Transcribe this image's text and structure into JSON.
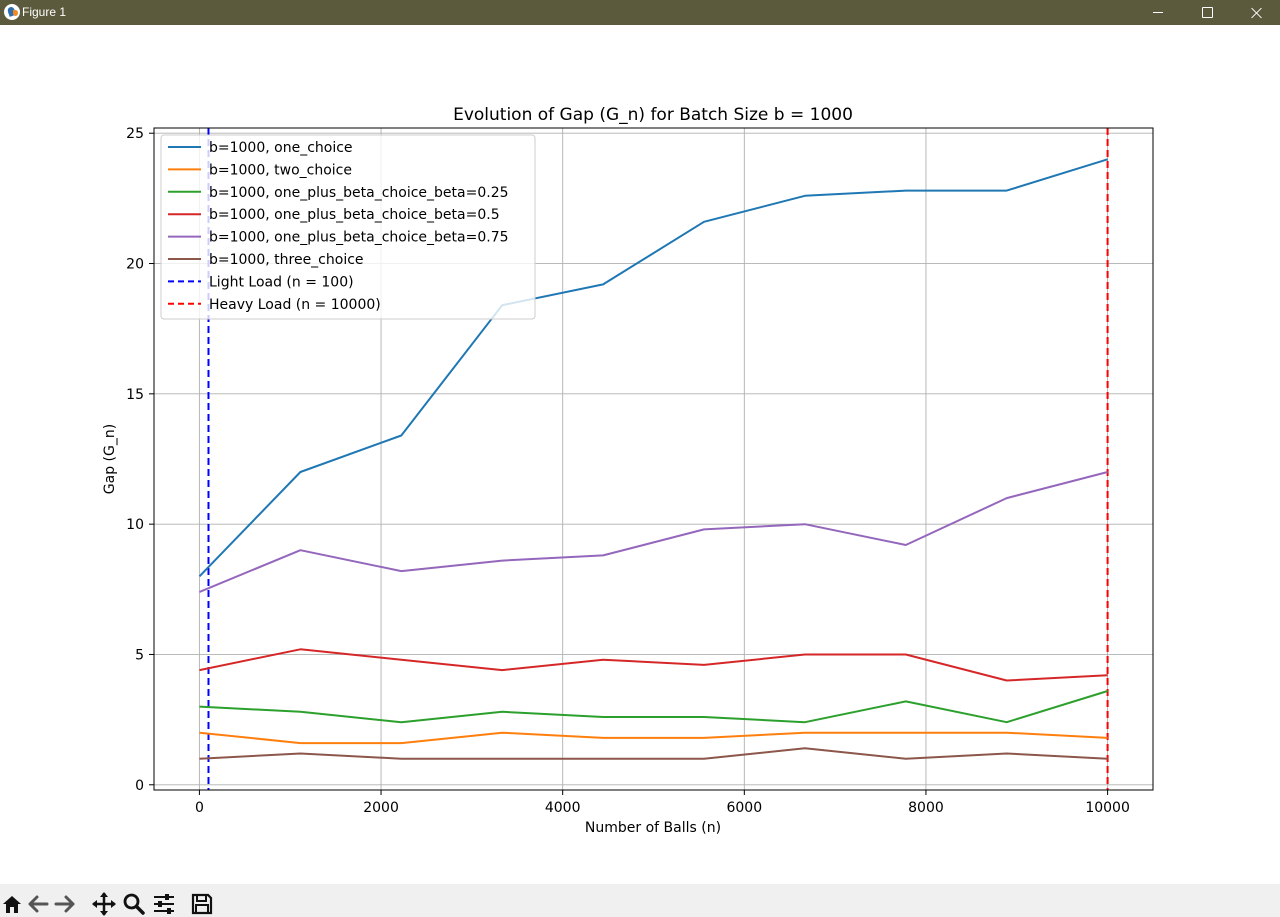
{
  "window": {
    "title": "Figure 1",
    "controls": {
      "minimize": "minimize-icon",
      "maximize": "maximize-icon",
      "close": "close-icon"
    }
  },
  "toolbar": {
    "tools": [
      "home-icon",
      "back-arrow-icon",
      "forward-arrow-icon",
      "pan-icon",
      "zoom-icon",
      "configure-subplots-icon",
      "save-icon"
    ]
  },
  "chart_data": {
    "type": "line",
    "title": "Evolution of Gap (G_n) for Batch Size b = 1000",
    "xlabel": "Number of Balls (n)",
    "ylabel": "Gap (G_n)",
    "xlim": [
      -500,
      10500
    ],
    "ylim": [
      -0.2,
      25.2
    ],
    "xticks": [
      0,
      2000,
      4000,
      6000,
      8000,
      10000
    ],
    "xtick_labels": [
      "0",
      "2000",
      "4000",
      "6000",
      "8000",
      "10000"
    ],
    "yticks": [
      0,
      5,
      10,
      15,
      20,
      25
    ],
    "ytick_labels": [
      "0",
      "5",
      "10",
      "15",
      "20",
      "25"
    ],
    "grid": true,
    "legend_position": "top-left",
    "x": [
      1,
      1112,
      2223,
      3334,
      4445,
      5556,
      6667,
      7778,
      8889,
      10000
    ],
    "series": [
      {
        "name": "b=1000, one_choice",
        "color": "#1f77b4",
        "style": "solid",
        "values": [
          8.0,
          12.0,
          13.4,
          18.4,
          19.2,
          21.6,
          22.6,
          22.8,
          22.8,
          24.0
        ]
      },
      {
        "name": "b=1000, two_choice",
        "color": "#ff7f0e",
        "style": "solid",
        "values": [
          2.0,
          1.6,
          1.6,
          2.0,
          1.8,
          1.8,
          2.0,
          2.0,
          2.0,
          1.8
        ]
      },
      {
        "name": "b=1000, one_plus_beta_choice_beta=0.25",
        "color": "#2ca02c",
        "style": "solid",
        "values": [
          3.0,
          2.8,
          2.4,
          2.8,
          2.6,
          2.6,
          2.4,
          3.2,
          2.4,
          3.6
        ]
      },
      {
        "name": "b=1000, one_plus_beta_choice_beta=0.5",
        "color": "#d62728",
        "style": "solid",
        "values": [
          4.4,
          5.2,
          4.8,
          4.4,
          4.8,
          4.6,
          5.0,
          5.0,
          4.0,
          4.2
        ]
      },
      {
        "name": "b=1000, one_plus_beta_choice_beta=0.75",
        "color": "#9467bd",
        "style": "solid",
        "values": [
          7.4,
          9.0,
          8.2,
          8.6,
          8.8,
          9.8,
          10.0,
          9.2,
          11.0,
          12.0
        ]
      },
      {
        "name": "b=1000, three_choice",
        "color": "#8c564b",
        "style": "solid",
        "values": [
          1.0,
          1.2,
          1.0,
          1.0,
          1.0,
          1.0,
          1.4,
          1.0,
          1.2,
          1.0
        ]
      }
    ],
    "vlines": [
      {
        "name": "Light Load (n = 100)",
        "x": 100,
        "color": "#0000ff",
        "style": "dashed"
      },
      {
        "name": "Heavy Load (n = 10000)",
        "x": 10000,
        "color": "#ff0000",
        "style": "dashed"
      }
    ]
  }
}
